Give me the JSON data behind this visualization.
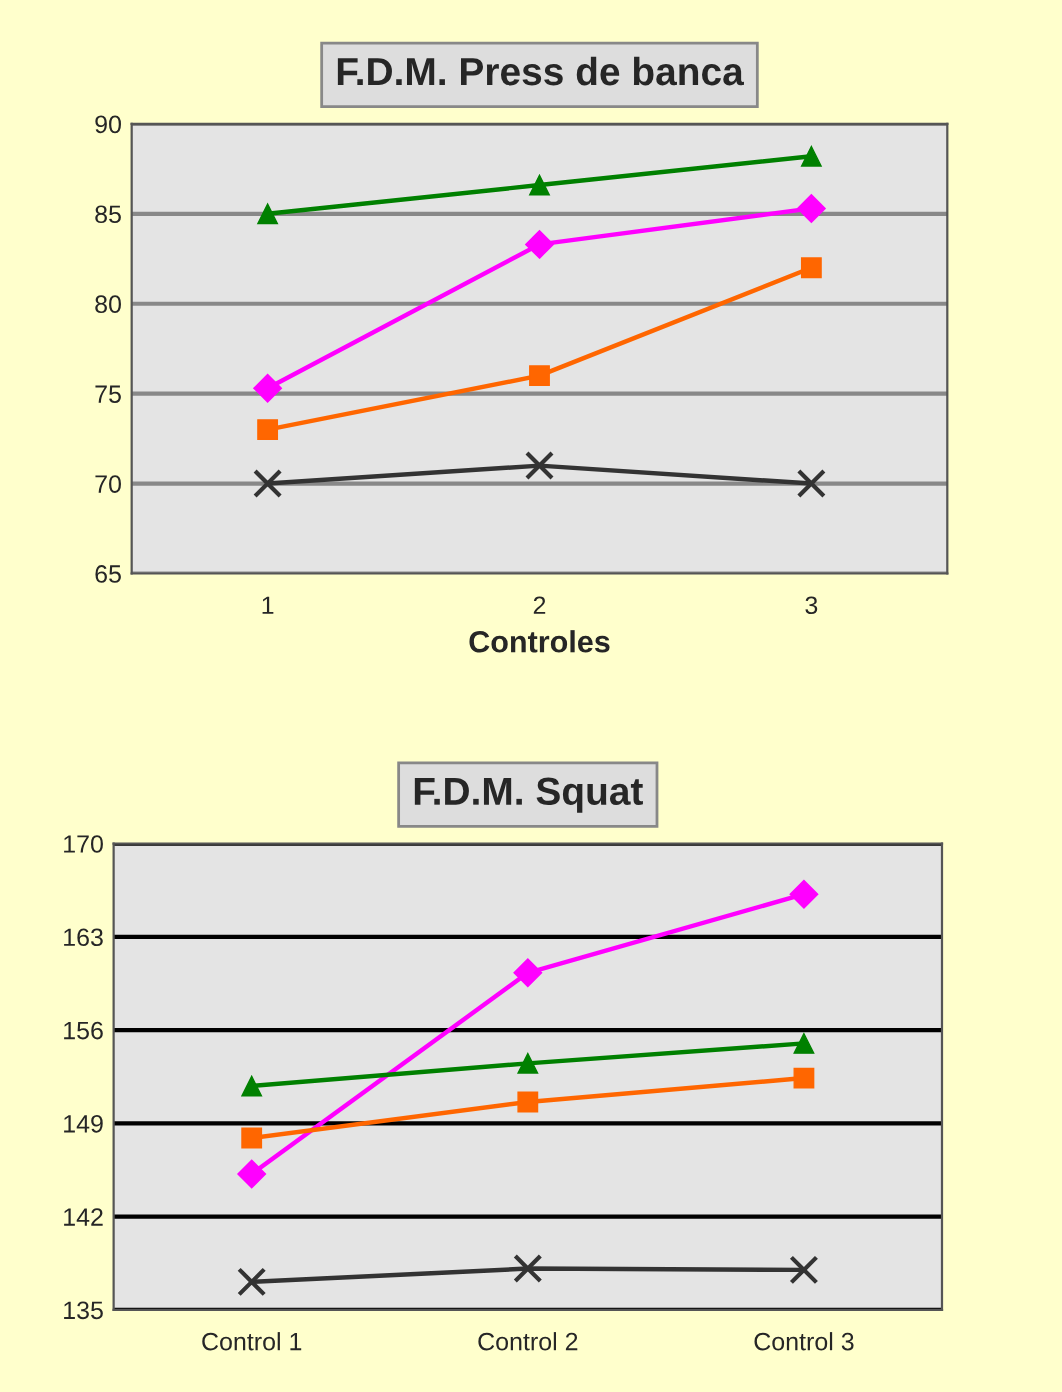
{
  "chart_data": [
    {
      "type": "line",
      "title": "F.D.M. Press de banca",
      "xlabel": "Controles",
      "categories": [
        "1",
        "2",
        "3"
      ],
      "ylim": [
        65,
        90
      ],
      "yticks": [
        65,
        70,
        75,
        80,
        85,
        90
      ],
      "grid": "y",
      "legend": false,
      "series": [
        {
          "color": "#008000",
          "marker": "triangle",
          "values": [
            85,
            86.6,
            88.2
          ]
        },
        {
          "color": "#ff00ff",
          "marker": "diamond",
          "values": [
            75.3,
            83.3,
            85.3
          ]
        },
        {
          "color": "#ff6600",
          "marker": "square",
          "values": [
            73,
            76,
            82
          ]
        },
        {
          "color": "#333333",
          "marker": "cross",
          "values": [
            70,
            71,
            70
          ]
        }
      ]
    },
    {
      "type": "line",
      "title": "F.D.M. Squat",
      "categories": [
        "Control 1",
        "Control 2",
        "Control 3"
      ],
      "ylim": [
        135,
        170
      ],
      "yticks": [
        135,
        142,
        149,
        156,
        163,
        170
      ],
      "grid": "y",
      "legend": false,
      "series": [
        {
          "color": "#ff00ff",
          "marker": "diamond",
          "values": [
            145.2,
            160.3,
            166.2
          ]
        },
        {
          "color": "#008000",
          "marker": "triangle",
          "values": [
            151.8,
            153.5,
            155
          ]
        },
        {
          "color": "#ff6600",
          "marker": "square",
          "values": [
            147.9,
            150.6,
            152.4
          ]
        },
        {
          "color": "#333333",
          "marker": "cross",
          "values": [
            137.1,
            138.1,
            138
          ]
        }
      ]
    }
  ]
}
